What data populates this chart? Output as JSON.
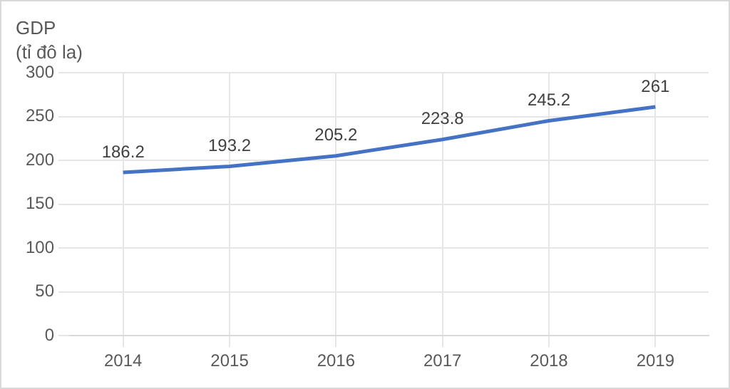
{
  "chart_data": {
    "type": "line",
    "ylabel": "GDP\n(tỉ đô la)",
    "categories": [
      "2014",
      "2015",
      "2016",
      "2017",
      "2018",
      "2019"
    ],
    "series": [
      {
        "color": "#4472c4",
        "values": [
          186.2,
          193.2,
          205.2,
          223.8,
          245.2,
          261
        ]
      }
    ],
    "ylim": [
      0,
      300
    ],
    "yticks": [
      0,
      50,
      100,
      150,
      200,
      250,
      300
    ],
    "grid": true,
    "data_labels": true,
    "marker": "none",
    "line_style": "solid",
    "legend": false
  }
}
